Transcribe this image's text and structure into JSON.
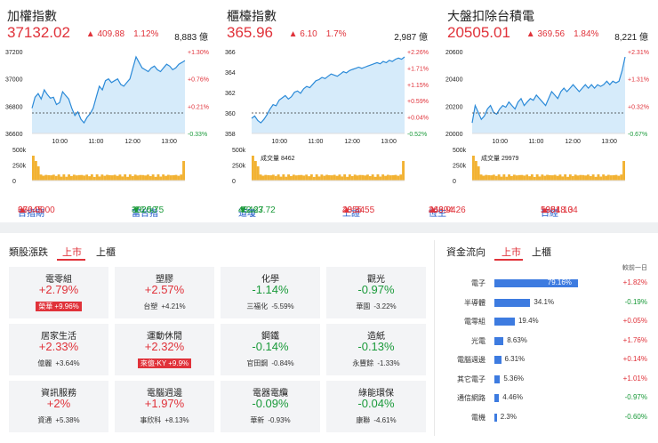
{
  "panels": [
    {
      "title": "加權指數",
      "price": "37132.02",
      "change": "409.88",
      "pct": "1.12%",
      "volume": "8,883 億",
      "y_labels": [
        "37200",
        "37000",
        "36800",
        "36600"
      ],
      "pct_labels": [
        "+1.30%",
        "+0.76%",
        "+0.21%",
        "-0.33%"
      ],
      "times": [
        "10:00",
        "11:00",
        "12:00",
        "13:00"
      ],
      "vol_labels": [
        "500k",
        "250k",
        "0"
      ],
      "vol_text": "",
      "series": [
        36900,
        36960,
        36980,
        36950,
        37000,
        36975,
        36955,
        36960,
        36920,
        36930,
        36990,
        36970,
        36950,
        36900,
        36860,
        36880,
        36840,
        36820,
        36850,
        36870,
        36900,
        36960,
        37020,
        37000,
        37050,
        37060,
        37040,
        37050,
        37060,
        37030,
        37020,
        37040,
        37060,
        37120,
        37180,
        37150,
        37120,
        37110,
        37100,
        37120,
        37130,
        37110,
        37100,
        37120,
        37140,
        37130,
        37110,
        37120,
        37140,
        37150,
        37160
      ]
    },
    {
      "title": "櫃檯指數",
      "price": "365.96",
      "change": "6.10",
      "pct": "1.7%",
      "volume": "2,987 億",
      "y_labels": [
        "366",
        "364",
        "362",
        "360",
        "358"
      ],
      "pct_labels": [
        "+2.26%",
        "+1.71%",
        "+1.15%",
        "+0.59%",
        "+0.04%",
        "-0.52%"
      ],
      "times": [
        "10:00",
        "11:00",
        "12:00",
        "13:00"
      ],
      "vol_labels": [
        "500k",
        "250k",
        "0"
      ],
      "vol_text": "成交量 8462",
      "series": [
        361.2,
        361.4,
        361.0,
        360.8,
        361.1,
        361.5,
        362.0,
        362.4,
        362.3,
        362.8,
        363.0,
        363.2,
        362.9,
        363.1,
        363.5,
        363.6,
        363.4,
        363.8,
        364.0,
        363.9,
        364.2,
        364.5,
        364.6,
        364.8,
        364.7,
        364.9,
        365.1,
        365.0,
        364.9,
        365.1,
        365.3,
        365.2,
        365.4,
        365.5,
        365.6,
        365.7,
        365.6,
        365.7,
        365.8,
        365.9,
        366.0,
        366.1,
        366.0,
        366.2,
        366.1,
        366.3,
        366.2,
        366.4,
        366.5,
        366.4,
        366.6
      ]
    },
    {
      "title": "大盤扣除台積電",
      "price": "20505.01",
      "change": "369.56",
      "pct": "1.84%",
      "volume": "8,221 億",
      "y_labels": [
        "20600",
        "20400",
        "20200",
        "20000"
      ],
      "pct_labels": [
        "+2.31%",
        "+1.31%",
        "+0.32%",
        "-0.67%"
      ],
      "times": [
        "10:00",
        "11:00",
        "12:00",
        "13:00"
      ],
      "vol_labels": [
        "500k",
        "250k",
        "0"
      ],
      "vol_text": "成交量 29979",
      "series": [
        20370,
        20420,
        20400,
        20380,
        20390,
        20410,
        20420,
        20400,
        20395,
        20410,
        20420,
        20415,
        20430,
        20420,
        20410,
        20430,
        20440,
        20420,
        20430,
        20440,
        20435,
        20450,
        20440,
        20430,
        20420,
        20440,
        20460,
        20450,
        20440,
        20460,
        20470,
        20460,
        20470,
        20480,
        20470,
        20460,
        20470,
        20480,
        20470,
        20480,
        20470,
        20480,
        20475,
        20480,
        20490,
        20480,
        20490,
        20485,
        20490,
        20520,
        20560
      ]
    }
  ],
  "ticker": [
    {
      "name": "台指期",
      "value": "37645.00",
      "dir": "▲",
      "chg": "660.00",
      "x": 20
    },
    {
      "name": "富台指",
      "value": "3020.75",
      "dir": "▼",
      "chg": "-26.50",
      "x": 148
    },
    {
      "name": "道瓊",
      "value": "48463.72",
      "dir": "▼",
      "chg": "-72.27",
      "x": 268
    },
    {
      "name": "上證",
      "value": "4055.55",
      "dir": "▲",
      "chg": "28.34",
      "x": 385
    },
    {
      "name": "恆生",
      "value": "26394.26",
      "dir": "▲",
      "chg": "446.94",
      "x": 482
    },
    {
      "name": "日經",
      "value": "59518.34",
      "dir": "▲",
      "chg": "1384.10",
      "x": 608
    }
  ],
  "sector": {
    "title": "類股漲跌",
    "tabs": [
      "上市",
      "上櫃"
    ],
    "cards": [
      {
        "name": "電零組",
        "pct": "+2.79%",
        "stock": "榮華",
        "stock_pct": "+9.96%",
        "badge": true,
        "color": "red"
      },
      {
        "name": "塑膠",
        "pct": "+2.57%",
        "stock": "台塑",
        "stock_pct": "+4.21%",
        "badge": false,
        "color": "red"
      },
      {
        "name": "化學",
        "pct": "-1.14%",
        "stock": "三福化",
        "stock_pct": "-5.59%",
        "badge": false,
        "color": "grn"
      },
      {
        "name": "觀光",
        "pct": "-0.97%",
        "stock": "華園",
        "stock_pct": "-3.22%",
        "badge": false,
        "color": "grn"
      },
      {
        "name": "居家生活",
        "pct": "+2.33%",
        "stock": "億麗",
        "stock_pct": "+3.64%",
        "badge": false,
        "color": "red"
      },
      {
        "name": "運動休閒",
        "pct": "+2.32%",
        "stock": "來億-KY",
        "stock_pct": "+9.9%",
        "badge": true,
        "color": "red"
      },
      {
        "name": "鋼鐵",
        "pct": "-0.14%",
        "stock": "官田鋼",
        "stock_pct": "-0.84%",
        "badge": false,
        "color": "grn"
      },
      {
        "name": "造紙",
        "pct": "-0.13%",
        "stock": "永豐餘",
        "stock_pct": "-1.33%",
        "badge": false,
        "color": "grn"
      },
      {
        "name": "資訊服務",
        "pct": "+2%",
        "stock": "資通",
        "stock_pct": "+5.38%",
        "badge": false,
        "color": "red"
      },
      {
        "name": "電腦週邊",
        "pct": "+1.97%",
        "stock": "事欣科",
        "stock_pct": "+8.13%",
        "badge": false,
        "color": "red"
      },
      {
        "name": "電器電纜",
        "pct": "-0.09%",
        "stock": "華新",
        "stock_pct": "-0.93%",
        "badge": false,
        "color": "grn"
      },
      {
        "name": "綠能環保",
        "pct": "-0.04%",
        "stock": "康聯",
        "stock_pct": "-4.61%",
        "badge": false,
        "color": "grn"
      }
    ]
  },
  "flow": {
    "title": "資金流向",
    "tabs": [
      "上市",
      "上櫃"
    ],
    "header": "較前一日",
    "rows": [
      {
        "name": "電子",
        "share": 79.16,
        "label": "79.16%",
        "chg": "+1.82%",
        "color": "red"
      },
      {
        "name": "半導體",
        "share": 34.1,
        "label": "34.1%",
        "chg": "-0.19%",
        "color": "grn"
      },
      {
        "name": "電零組",
        "share": 19.4,
        "label": "19.4%",
        "chg": "+0.05%",
        "color": "red"
      },
      {
        "name": "光電",
        "share": 8.63,
        "label": "8.63%",
        "chg": "+1.76%",
        "color": "red"
      },
      {
        "name": "電腦週邊",
        "share": 6.31,
        "label": "6.31%",
        "chg": "+0.14%",
        "color": "red"
      },
      {
        "name": "其它電子",
        "share": 5.36,
        "label": "5.36%",
        "chg": "+1.01%",
        "color": "red"
      },
      {
        "name": "通信網路",
        "share": 4.46,
        "label": "4.46%",
        "chg": "-0.97%",
        "color": "grn"
      },
      {
        "name": "電機",
        "share": 2.3,
        "label": "2.3%",
        "chg": "-0.60%",
        "color": "grn"
      }
    ]
  },
  "colors": {
    "up": "#e0323a",
    "down": "#1a9a3a",
    "line": "#2b8ad8",
    "fill": "#d6ebfa",
    "vol": "#f2b233",
    "bar": "#3d7be0"
  }
}
